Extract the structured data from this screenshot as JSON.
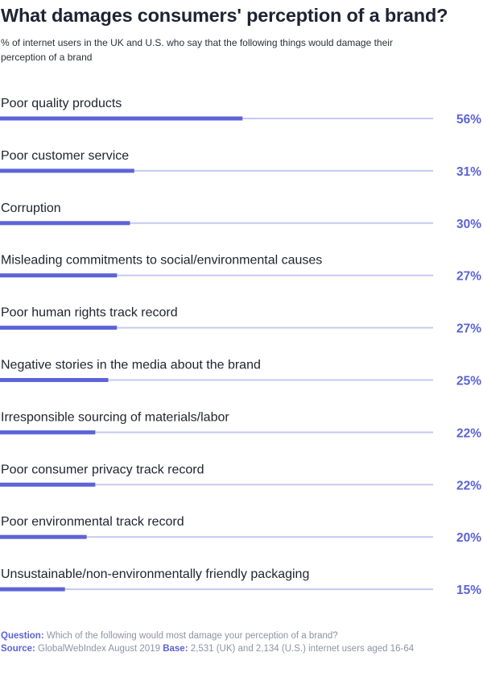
{
  "title": "What damages consumers' perception of a brand?",
  "subtitle": "% of internet users in the UK and U.S. who say that the following things would damage their perception of a brand",
  "footer": {
    "question_label": "Question:",
    "question_text": "Which of the following would most damage your perception of a brand?",
    "source_label": "Source:",
    "source_text": "GlobalWebIndex August 2019",
    "base_label": "Base:",
    "base_text": "2,531 (UK) and 2,134 (U.S.) internet users aged 16-64"
  },
  "colors": {
    "bar": "#5d64d8",
    "track": "#c5c9f2",
    "value": "#5b63d6",
    "label": "#1f2330"
  },
  "chart_data": {
    "type": "bar",
    "orientation": "horizontal",
    "unit": "%",
    "xlim": [
      0,
      100
    ],
    "categories": [
      "Poor quality products",
      "Poor customer service",
      "Corruption",
      "Misleading commitments to social/environmental causes",
      "Poor human rights track record",
      "Negative stories in the media about the brand",
      "Irresponsible sourcing of materials/labor",
      "Poor consumer privacy track record",
      "Poor environmental track record",
      "Unsustainable/non-environmentally friendly packaging"
    ],
    "values": [
      56,
      31,
      30,
      27,
      27,
      25,
      22,
      22,
      20,
      15
    ],
    "value_labels": [
      "56%",
      "31%",
      "30%",
      "27%",
      "27%",
      "25%",
      "22%",
      "22%",
      "20%",
      "15%"
    ]
  }
}
